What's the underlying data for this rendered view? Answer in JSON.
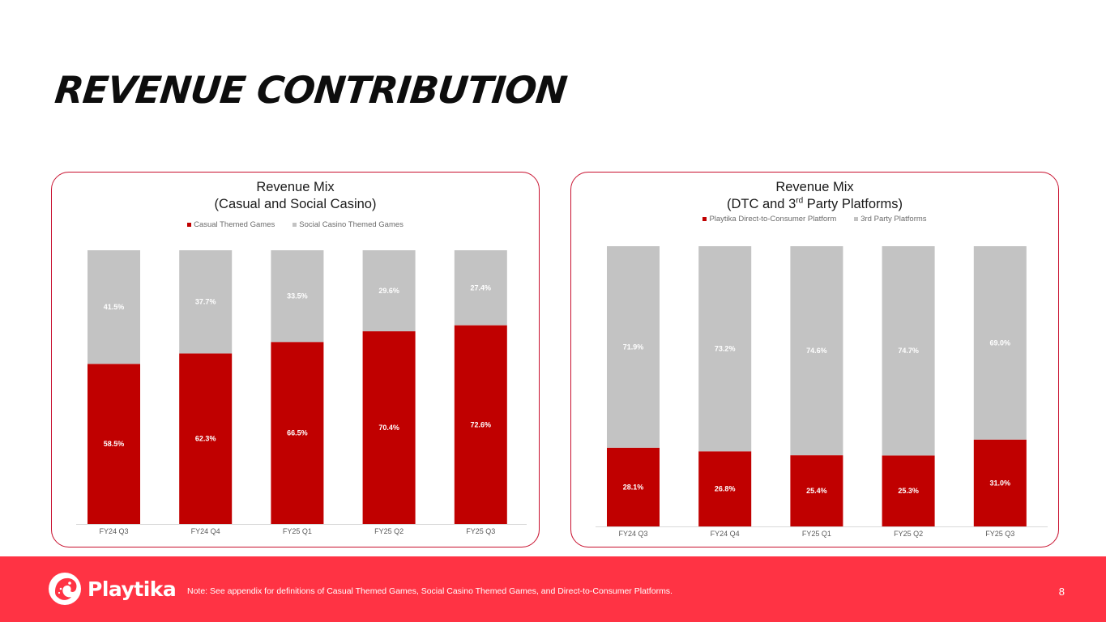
{
  "slide": {
    "title": "REVENUE CONTRIBUTION",
    "page_number": "8",
    "note": "Note:  See appendix for definitions of Casual Themed Games, Social Casino Themed Games, and Direct-to-Consumer Platforms.",
    "logo_text": "Playtika"
  },
  "colors": {
    "primary_red": "#c00000",
    "gray": "#c3c3c3",
    "footer_red": "#ff3344",
    "border_red": "#c8102e"
  },
  "chart_data": [
    {
      "type": "bar",
      "stacked": true,
      "percent_stacked": true,
      "title_line1": "Revenue Mix",
      "title_line2": "(Casual and Social Casino)",
      "categories": [
        "FY24 Q3",
        "FY24 Q4",
        "FY25 Q1",
        "FY25 Q2",
        "FY25 Q3"
      ],
      "series": [
        {
          "name": "Casual Themed Games",
          "color": "#c00000",
          "values": [
            58.5,
            62.3,
            66.5,
            70.4,
            72.6
          ],
          "labels": [
            "58.5%",
            "62.3%",
            "66.5%",
            "70.4%",
            "72.6%"
          ]
        },
        {
          "name": "Social Casino Themed Games",
          "color": "#c3c3c3",
          "values": [
            41.5,
            37.7,
            33.5,
            29.6,
            27.4
          ],
          "labels": [
            "41.5%",
            "37.7%",
            "33.5%",
            "29.6%",
            "27.4%"
          ]
        }
      ],
      "ylim": [
        0,
        100
      ],
      "legend_position": "top-center"
    },
    {
      "type": "bar",
      "stacked": true,
      "percent_stacked": true,
      "title_line1": "Revenue Mix",
      "title_line2_prefix": "(DTC and 3",
      "title_line2_sup": "rd",
      "title_line2_suffix": " Party Platforms)",
      "categories": [
        "FY24 Q3",
        "FY24 Q4",
        "FY25 Q1",
        "FY25 Q2",
        "FY25 Q3"
      ],
      "series": [
        {
          "name": "Playtika Direct-to-Consumer Platform",
          "color": "#c00000",
          "values": [
            28.1,
            26.8,
            25.4,
            25.3,
            31.0
          ],
          "labels": [
            "28.1%",
            "26.8%",
            "25.4%",
            "25.3%",
            "31.0%"
          ]
        },
        {
          "name": "3rd Party Platforms",
          "color": "#c3c3c3",
          "values": [
            71.9,
            73.2,
            74.6,
            74.7,
            69.0
          ],
          "labels": [
            "71.9%",
            "73.2%",
            "74.6%",
            "74.7%",
            "69.0%"
          ]
        }
      ],
      "ylim": [
        0,
        100
      ],
      "legend_position": "top-center"
    }
  ]
}
